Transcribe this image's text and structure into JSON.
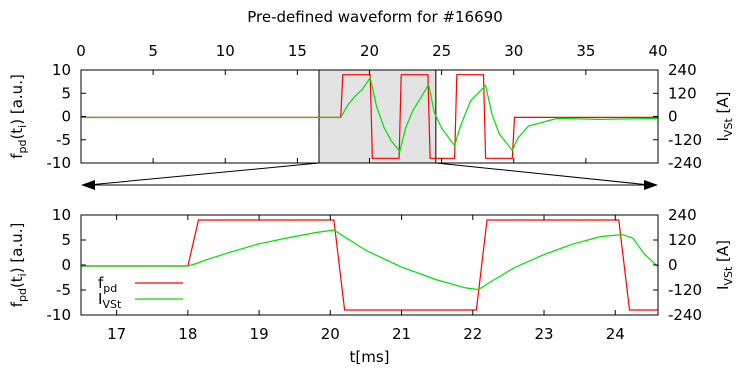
{
  "chart_data": [
    {
      "type": "line",
      "title": "Pre-defined waveform for #16690",
      "x_axis_position": "top",
      "xlim": [
        0,
        40
      ],
      "xticks": [
        0,
        5,
        10,
        15,
        20,
        25,
        30,
        35,
        40
      ],
      "ylim_left": [
        -10,
        10
      ],
      "yticks_left": [
        10,
        5,
        0,
        -5,
        -10
      ],
      "ylabel_left": {
        "main": "f",
        "sub": "pd",
        "rest": "(t",
        "sub2": "i",
        "end": ") [a.u.]"
      },
      "ylim_right": [
        -240,
        240
      ],
      "yticks_right": [
        240,
        120,
        0,
        -120,
        -240
      ],
      "ylabel_right": {
        "main": "I",
        "sub": "VSt",
        "end": " [A]"
      },
      "highlight_range": [
        16.5,
        24.6
      ],
      "grid": false,
      "series": [
        {
          "name": "f_pd",
          "color": "#ff0000",
          "x": [
            0,
            16.5,
            18.0,
            18.15,
            20.05,
            20.2,
            22.05,
            22.2,
            24.05,
            24.2,
            25.9,
            26.05,
            27.9,
            28.05,
            29.9,
            30.05,
            40
          ],
          "y": [
            -0.2,
            -0.2,
            -0.2,
            9,
            9,
            -9,
            -9,
            9,
            9,
            -9,
            -9,
            9,
            9,
            -9,
            -9,
            -0.2,
            -0.2
          ]
        },
        {
          "name": "I_VSt",
          "color": "#00e000",
          "x": [
            0,
            15,
            18.0,
            18.5,
            19.0,
            19.5,
            20.05,
            20.5,
            21.0,
            21.5,
            22.1,
            22.5,
            23.0,
            23.5,
            24.1,
            24.5,
            25.0,
            25.9,
            26.3,
            27.0,
            28.05,
            28.5,
            29.0,
            29.9,
            30.3,
            31.0,
            33.0,
            36.0,
            40
          ],
          "y": [
            -5,
            -5,
            -5,
            60,
            105,
            140,
            200,
            50,
            -55,
            -125,
            -180,
            -60,
            30,
            90,
            165,
            20,
            -60,
            -150,
            -50,
            80,
            160,
            10,
            -90,
            -175,
            -110,
            -50,
            -10,
            -15,
            -10
          ]
        }
      ]
    },
    {
      "type": "line",
      "xlabel": "t[ms]",
      "x_axis_position": "bottom",
      "xlim": [
        16.5,
        24.6
      ],
      "xticks": [
        17,
        18,
        19,
        20,
        21,
        22,
        23,
        24
      ],
      "ylim_left": [
        -10,
        10
      ],
      "yticks_left": [
        10,
        5,
        0,
        -5,
        -10
      ],
      "ylabel_left": {
        "main": "f",
        "sub": "pd",
        "rest": "(t",
        "sub2": "i",
        "end": ") [a.u.]"
      },
      "ylim_right": [
        -240,
        240
      ],
      "yticks_right": [
        240,
        120,
        0,
        -120,
        -240
      ],
      "ylabel_right": {
        "main": "I",
        "sub": "VSt",
        "end": " [A]"
      },
      "legend_position": "bottom-left",
      "grid": false,
      "series": [
        {
          "name": "f_pd",
          "legend_main": "f",
          "legend_sub": "pd",
          "color": "#ff0000",
          "x": [
            16.5,
            18.0,
            18.15,
            20.05,
            20.2,
            22.05,
            22.2,
            24.05,
            24.2,
            24.6
          ],
          "y": [
            -0.2,
            -0.2,
            9,
            9,
            -9,
            -9,
            9,
            9,
            -9,
            -9
          ]
        },
        {
          "name": "I_VSt",
          "legend_main": "I",
          "legend_sub": "VSt",
          "color": "#00e000",
          "x": [
            16.5,
            18.0,
            18.1,
            18.3,
            18.6,
            19.0,
            19.4,
            19.8,
            20.05,
            20.2,
            20.5,
            21.0,
            21.5,
            21.9,
            22.08,
            22.3,
            22.6,
            23.0,
            23.4,
            23.8,
            24.1,
            24.25,
            24.4,
            24.6
          ],
          "y": [
            -5,
            -5,
            5,
            30,
            62,
            102,
            130,
            156,
            168,
            135,
            70,
            -10,
            -72,
            -110,
            -118,
            -70,
            -10,
            50,
            100,
            137,
            146,
            128,
            55,
            -8
          ]
        }
      ]
    }
  ]
}
